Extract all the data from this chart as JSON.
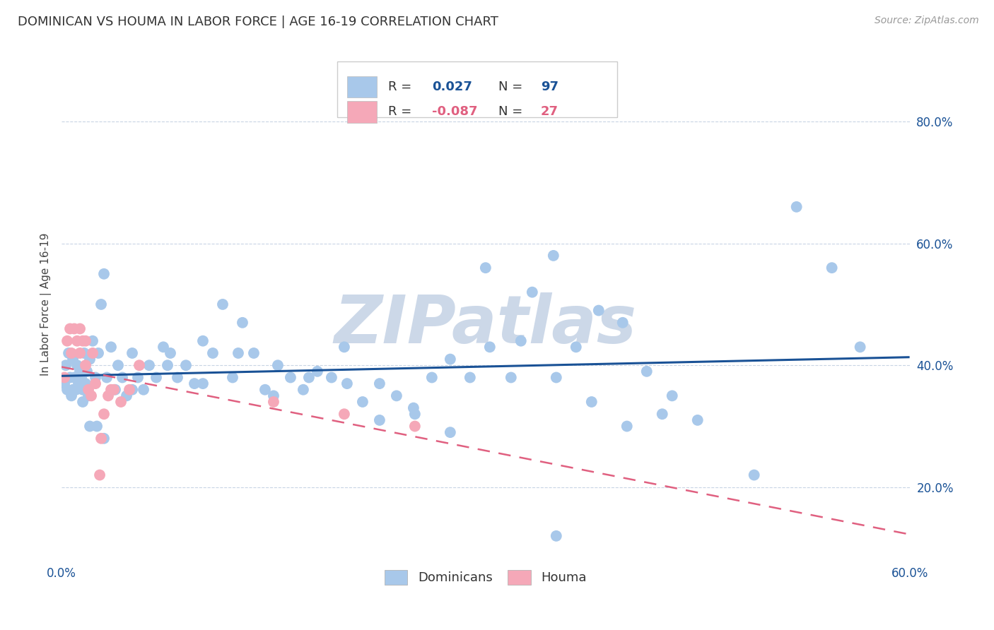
{
  "title": "DOMINICAN VS HOUMA IN LABOR FORCE | AGE 16-19 CORRELATION CHART",
  "source": "Source: ZipAtlas.com",
  "ylabel": "In Labor Force | Age 16-19",
  "xlim": [
    0.0,
    0.6
  ],
  "ylim": [
    0.08,
    0.92
  ],
  "x_ticks": [
    0.0,
    0.1,
    0.2,
    0.3,
    0.4,
    0.5,
    0.6
  ],
  "x_tick_labels": [
    "0.0%",
    "",
    "",
    "",
    "",
    "",
    "60.0%"
  ],
  "y_ticks": [
    0.2,
    0.4,
    0.6,
    0.8
  ],
  "y_tick_labels": [
    "20.0%",
    "40.0%",
    "60.0%",
    "80.0%"
  ],
  "dominican_R": 0.027,
  "dominican_N": 97,
  "houma_R": -0.087,
  "houma_N": 27,
  "blue_color": "#a8c8ea",
  "pink_color": "#f5a8b8",
  "blue_line_color": "#1a5296",
  "pink_line_color": "#e06080",
  "background_color": "#ffffff",
  "grid_color": "#c8d4e4",
  "watermark_color": "#ccd8e8",
  "dominican_x": [
    0.002,
    0.003,
    0.004,
    0.005,
    0.006,
    0.007,
    0.008,
    0.009,
    0.01,
    0.011,
    0.012,
    0.013,
    0.014,
    0.015,
    0.016,
    0.017,
    0.018,
    0.019,
    0.02,
    0.022,
    0.024,
    0.026,
    0.028,
    0.03,
    0.032,
    0.035,
    0.038,
    0.04,
    0.043,
    0.046,
    0.05,
    0.054,
    0.058,
    0.062,
    0.067,
    0.072,
    0.077,
    0.082,
    0.088,
    0.094,
    0.1,
    0.107,
    0.114,
    0.121,
    0.128,
    0.136,
    0.144,
    0.153,
    0.162,
    0.171,
    0.181,
    0.191,
    0.202,
    0.213,
    0.225,
    0.237,
    0.249,
    0.262,
    0.275,
    0.289,
    0.303,
    0.318,
    0.333,
    0.348,
    0.364,
    0.38,
    0.397,
    0.414,
    0.432,
    0.45,
    0.05,
    0.075,
    0.1,
    0.125,
    0.15,
    0.175,
    0.2,
    0.225,
    0.25,
    0.275,
    0.3,
    0.325,
    0.35,
    0.375,
    0.4,
    0.425,
    0.49,
    0.52,
    0.545,
    0.565,
    0.01,
    0.02,
    0.03,
    0.008,
    0.015,
    0.025,
    0.35
  ],
  "dominican_y": [
    0.37,
    0.4,
    0.36,
    0.42,
    0.38,
    0.35,
    0.41,
    0.38,
    0.36,
    0.4,
    0.37,
    0.39,
    0.38,
    0.36,
    0.42,
    0.37,
    0.39,
    0.35,
    0.41,
    0.44,
    0.38,
    0.42,
    0.5,
    0.55,
    0.38,
    0.43,
    0.36,
    0.4,
    0.38,
    0.35,
    0.42,
    0.38,
    0.36,
    0.4,
    0.38,
    0.43,
    0.42,
    0.38,
    0.4,
    0.37,
    0.44,
    0.42,
    0.5,
    0.38,
    0.47,
    0.42,
    0.36,
    0.4,
    0.38,
    0.36,
    0.39,
    0.38,
    0.37,
    0.34,
    0.31,
    0.35,
    0.33,
    0.38,
    0.41,
    0.38,
    0.43,
    0.38,
    0.52,
    0.58,
    0.43,
    0.49,
    0.47,
    0.39,
    0.35,
    0.31,
    0.36,
    0.4,
    0.37,
    0.42,
    0.35,
    0.38,
    0.43,
    0.37,
    0.32,
    0.29,
    0.56,
    0.44,
    0.38,
    0.34,
    0.3,
    0.32,
    0.22,
    0.66,
    0.56,
    0.43,
    0.36,
    0.3,
    0.28,
    0.36,
    0.34,
    0.3,
    0.12
  ],
  "houma_x": [
    0.002,
    0.004,
    0.006,
    0.007,
    0.009,
    0.011,
    0.013,
    0.015,
    0.017,
    0.019,
    0.021,
    0.024,
    0.027,
    0.03,
    0.033,
    0.037,
    0.042,
    0.048,
    0.055,
    0.013,
    0.017,
    0.022,
    0.028,
    0.035,
    0.15,
    0.2,
    0.25
  ],
  "houma_y": [
    0.38,
    0.44,
    0.46,
    0.42,
    0.46,
    0.44,
    0.42,
    0.44,
    0.4,
    0.36,
    0.35,
    0.37,
    0.22,
    0.32,
    0.35,
    0.36,
    0.34,
    0.36,
    0.4,
    0.46,
    0.44,
    0.42,
    0.28,
    0.36,
    0.34,
    0.32,
    0.3
  ]
}
